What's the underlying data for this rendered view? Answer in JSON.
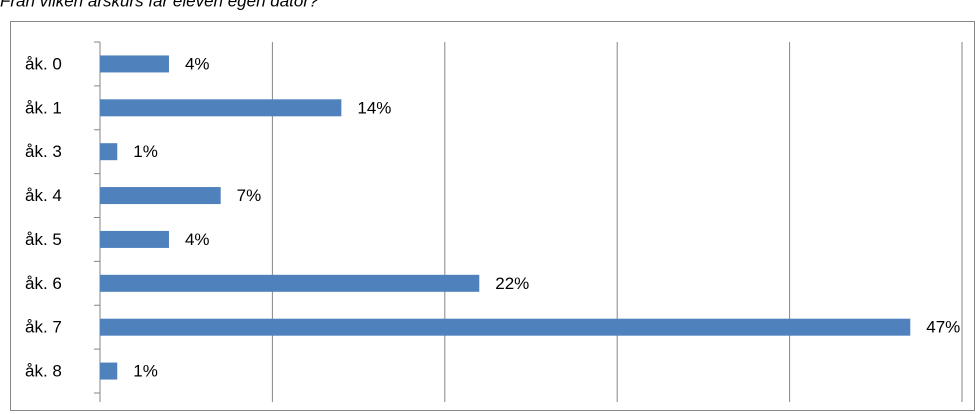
{
  "chart_data": {
    "type": "hbar",
    "title": "Från vilken årskurs får eleven egen dator?",
    "categories": [
      "åk. 0",
      "åk. 1",
      "åk. 3",
      "åk. 4",
      "åk. 5",
      "åk. 6",
      "åk. 7",
      "åk. 8"
    ],
    "values": [
      4,
      14,
      1,
      7,
      4,
      22,
      47,
      1
    ],
    "value_labels": [
      "4%",
      "14%",
      "1%",
      "7%",
      "4%",
      "22%",
      "47%",
      "1%"
    ],
    "color": "#4f81bd",
    "xlim": [
      0,
      50
    ],
    "xticks": [
      0,
      10,
      20,
      30,
      40,
      50
    ],
    "grid": true
  }
}
